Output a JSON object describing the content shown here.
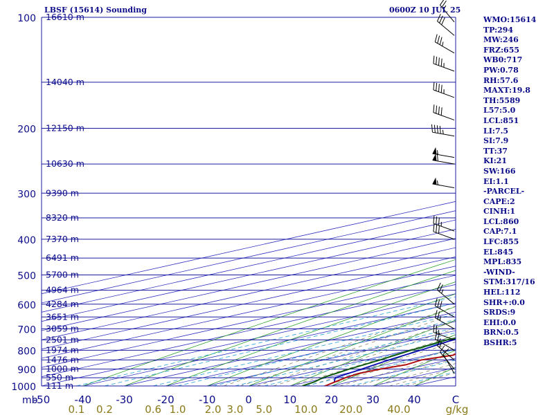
{
  "header": {
    "title": "LBSF (15614) Sounding",
    "datetime": "0600Z 10 JUL 25"
  },
  "indices": [
    "WMO:15614",
    "TP:294",
    "MW:246",
    "FRZ:655",
    "WB0:717",
    "PW:0.78",
    "RH:57.6",
    "MAXT:19.8",
    "TH:5589",
    "L57:5.0",
    "LCL:851",
    "LI:7.5",
    "SI:7.9",
    "TT:37",
    "KI:21",
    "SW:166",
    "EI:1.1",
    "-PARCEL-",
    "CAPE:2",
    "CINH:1",
    "LCL:860",
    "CAP:7.1",
    "LFC:855",
    "EL:845",
    "MPL:835",
    "-WIND-",
    "STM:317/16",
    "HEL:112",
    "SHR+:0.0",
    "SRDS:9",
    "EHI:0.0",
    "BRN:0.5",
    "BSHR:5"
  ],
  "colors": {
    "isobar": "#1a1aa0",
    "isotherm": "#3030c0",
    "dry_adiabat": "#2ca02c",
    "moist_adiabat": "#8a8a6a",
    "mixing_ratio": "#3aa8d8",
    "temperature": "#b01010",
    "dewpoint": "#0f5a0f",
    "parcel": "#0a0ab0",
    "label_text": "#0b0b8a",
    "mixing_label_text": "#8a7a1a"
  },
  "chart_data": {
    "type": "skew-t log-p",
    "pressure_range_hpa": [
      100,
      1000
    ],
    "temperature_axis_range_c": [
      -50,
      50
    ],
    "pressure_levels": [
      {
        "p": 100,
        "label": "100",
        "height_label": "16610 m"
      },
      {
        "p": 150,
        "label": "",
        "height_label": "14040 m"
      },
      {
        "p": 200,
        "label": "200",
        "height_label": "12150 m"
      },
      {
        "p": 250,
        "label": "",
        "height_label": "10630 m"
      },
      {
        "p": 300,
        "label": "300",
        "height_label": "9390 m"
      },
      {
        "p": 350,
        "label": "",
        "height_label": "8320 m"
      },
      {
        "p": 400,
        "label": "400",
        "height_label": "7370 m"
      },
      {
        "p": 450,
        "label": "",
        "height_label": "6491 m"
      },
      {
        "p": 500,
        "label": "500",
        "height_label": "5700 m"
      },
      {
        "p": 550,
        "label": "",
        "height_label": "4964 m"
      },
      {
        "p": 600,
        "label": "600",
        "height_label": "4284 m"
      },
      {
        "p": 650,
        "label": "",
        "height_label": "3651 m"
      },
      {
        "p": 700,
        "label": "700",
        "height_label": "3059 m"
      },
      {
        "p": 750,
        "label": "",
        "height_label": "2501 m"
      },
      {
        "p": 800,
        "label": "800",
        "height_label": "1974 m"
      },
      {
        "p": 850,
        "label": "",
        "height_label": "1476 m"
      },
      {
        "p": 900,
        "label": "900",
        "height_label": "1000 m"
      },
      {
        "p": 950,
        "label": "",
        "height_label": "550 m"
      },
      {
        "p": 1000,
        "label": "1000",
        "height_label": "111 m"
      }
    ],
    "x_axis_unit_label": "mb",
    "x_ticks": [
      {
        "v": -50,
        "label": "-50"
      },
      {
        "v": -40,
        "label": "-40"
      },
      {
        "v": -30,
        "label": "-30"
      },
      {
        "v": -20,
        "label": "-20"
      },
      {
        "v": -10,
        "label": "-10"
      },
      {
        "v": 0,
        "label": "0"
      },
      {
        "v": 10,
        "label": "10"
      },
      {
        "v": 20,
        "label": "20"
      },
      {
        "v": 30,
        "label": "30"
      },
      {
        "v": 40,
        "label": "40"
      },
      {
        "v": 50,
        "label": "C"
      }
    ],
    "mixing_ratio_unit_label": "g/kg",
    "mixing_ratios": [
      {
        "w": 0.1,
        "label": "0.1"
      },
      {
        "w": 0.2,
        "label": "0.2"
      },
      {
        "w": 0.6,
        "label": "0.6"
      },
      {
        "w": 1.0,
        "label": "1.0"
      },
      {
        "w": 2.0,
        "label": "2.0"
      },
      {
        "w": 3.0,
        "label": "3.0"
      },
      {
        "w": 5.0,
        "label": "5.0"
      },
      {
        "w": 10.0,
        "label": "10.0"
      },
      {
        "w": 20.0,
        "label": "20.0"
      },
      {
        "w": 40.0,
        "label": "40.0"
      }
    ],
    "temperature_profile": [
      [
        1000,
        18.5
      ],
      [
        975,
        16.5
      ],
      [
        950,
        14.5
      ],
      [
        925,
        13.0
      ],
      [
        900,
        13.5
      ],
      [
        875,
        15.0
      ],
      [
        850,
        13.5
      ],
      [
        825,
        16.0
      ],
      [
        800,
        13.0
      ],
      [
        775,
        12.5
      ],
      [
        750,
        11.5
      ],
      [
        700,
        9.0
      ],
      [
        650,
        6.5
      ],
      [
        600,
        2.0
      ],
      [
        550,
        -2.5
      ],
      [
        500,
        -6.5
      ],
      [
        450,
        -12.0
      ],
      [
        400,
        -19.5
      ],
      [
        350,
        -28.0
      ],
      [
        300,
        -37.0
      ],
      [
        280,
        -37.0
      ],
      [
        250,
        -36.5
      ],
      [
        220,
        -38.5
      ],
      [
        200,
        -41.0
      ],
      [
        170,
        -47.0
      ],
      [
        150,
        -53.0
      ],
      [
        130,
        -57.5
      ],
      [
        120,
        -61.0
      ],
      [
        110,
        -62.0
      ],
      [
        104,
        -62.0
      ],
      [
        100,
        -62.5
      ]
    ],
    "dewpoint_profile": [
      [
        1000,
        13.0
      ],
      [
        975,
        11.5
      ],
      [
        950,
        9.0
      ],
      [
        925,
        7.5
      ],
      [
        900,
        6.0
      ],
      [
        850,
        3.5
      ],
      [
        800,
        0.5
      ],
      [
        750,
        -2.0
      ],
      [
        700,
        -1.5
      ],
      [
        650,
        -8.5
      ],
      [
        600,
        -12.5
      ],
      [
        550,
        -25.0
      ],
      [
        500,
        -41.5
      ],
      [
        450,
        -43.0
      ],
      [
        400,
        -44.0
      ],
      [
        350,
        -49.0
      ],
      [
        300,
        -58.0
      ],
      [
        280,
        -60.0
      ],
      [
        250,
        -72.0
      ],
      [
        220,
        -72.0
      ],
      [
        200,
        -73.5
      ],
      [
        170,
        -77.0
      ],
      [
        150,
        -80.0
      ],
      [
        130,
        -85.5
      ],
      [
        120,
        -90.0
      ],
      [
        110,
        -96.0
      ],
      [
        100,
        -105.0
      ]
    ],
    "parcel_path": [
      [
        975,
        16.3
      ],
      [
        950,
        12.0
      ],
      [
        925,
        10.5
      ],
      [
        900,
        9.0
      ],
      [
        850,
        5.7
      ],
      [
        800,
        2.8
      ],
      [
        750,
        -0.6
      ],
      [
        700,
        -3.7
      ],
      [
        650,
        -7.5
      ],
      [
        600,
        -11.3
      ],
      [
        550,
        -15.8
      ],
      [
        500,
        -20.9
      ],
      [
        450,
        -26.6
      ],
      [
        400,
        -33.0
      ],
      [
        350,
        -40.0
      ],
      [
        300,
        -48.0
      ],
      [
        250,
        -57.5
      ],
      [
        200,
        -68.0
      ],
      [
        170,
        -77.0
      ],
      [
        150,
        -80.0
      ],
      [
        130,
        -87.0
      ],
      [
        115,
        -92.0
      ]
    ],
    "wind_profile": [
      {
        "p": 925,
        "dir": 330,
        "kt": 10
      },
      {
        "p": 900,
        "dir": 320,
        "kt": 10
      },
      {
        "p": 850,
        "dir": 310,
        "kt": 15
      },
      {
        "p": 800,
        "dir": 300,
        "kt": 20
      },
      {
        "p": 750,
        "dir": 290,
        "kt": 25
      },
      {
        "p": 700,
        "dir": 300,
        "kt": 25
      },
      {
        "p": 650,
        "dir": 300,
        "kt": 30
      },
      {
        "p": 600,
        "dir": 310,
        "kt": 25
      },
      {
        "p": 400,
        "dir": 290,
        "kt": 30
      },
      {
        "p": 380,
        "dir": 290,
        "kt": 35
      },
      {
        "p": 290,
        "dir": 280,
        "kt": 55
      },
      {
        "p": 250,
        "dir": 280,
        "kt": 60
      },
      {
        "p": 240,
        "dir": 280,
        "kt": 55
      },
      {
        "p": 210,
        "dir": 280,
        "kt": 45
      },
      {
        "p": 190,
        "dir": 290,
        "kt": 40
      },
      {
        "p": 165,
        "dir": 290,
        "kt": 45
      },
      {
        "p": 140,
        "dir": 290,
        "kt": 45
      },
      {
        "p": 125,
        "dir": 300,
        "kt": 35
      },
      {
        "p": 112,
        "dir": 310,
        "kt": 30
      },
      {
        "p": 103,
        "dir": 320,
        "kt": 25
      }
    ]
  }
}
